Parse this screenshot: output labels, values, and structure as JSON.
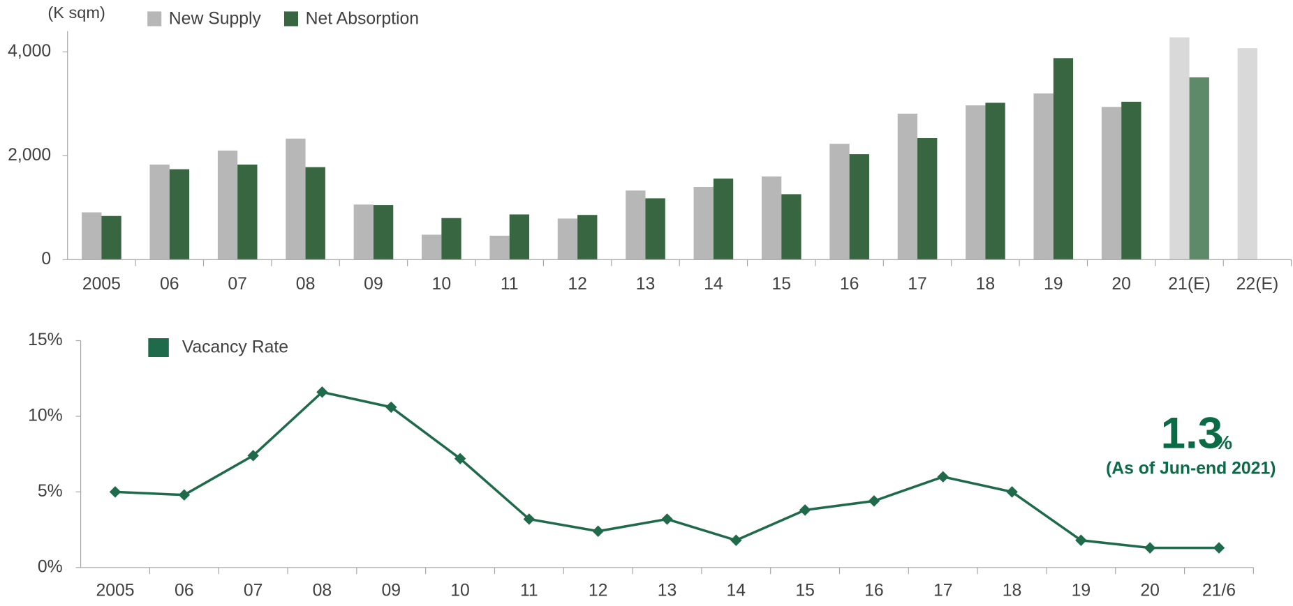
{
  "chart_data": [
    {
      "type": "bar",
      "unit_label": "(K sqm)",
      "categories": [
        "2005",
        "06",
        "07",
        "08",
        "09",
        "10",
        "11",
        "12",
        "13",
        "14",
        "15",
        "16",
        "17",
        "18",
        "19",
        "20",
        "21(E)",
        "22(E)"
      ],
      "series": [
        {
          "name": "New Supply",
          "color": "#b7b7b7",
          "colors": [
            "#b7b7b7",
            "#b7b7b7",
            "#b7b7b7",
            "#b7b7b7",
            "#b7b7b7",
            "#b7b7b7",
            "#b7b7b7",
            "#b7b7b7",
            "#b7b7b7",
            "#b7b7b7",
            "#b7b7b7",
            "#b7b7b7",
            "#b7b7b7",
            "#b7b7b7",
            "#b7b7b7",
            "#b7b7b7",
            "#d9d9d9",
            "#d9d9d9"
          ],
          "values": [
            910,
            1830,
            2100,
            2330,
            1060,
            480,
            460,
            790,
            1330,
            1400,
            1600,
            2230,
            2810,
            2970,
            3200,
            2940,
            4280,
            4070
          ]
        },
        {
          "name": "Net Absorption",
          "color": "#386641",
          "colors": [
            "#386641",
            "#386641",
            "#386641",
            "#386641",
            "#386641",
            "#386641",
            "#386641",
            "#386641",
            "#386641",
            "#386641",
            "#386641",
            "#386641",
            "#386641",
            "#386641",
            "#386641",
            "#386641",
            "#5e8a6a",
            "#5e8a6a"
          ],
          "values": [
            840,
            1740,
            1830,
            1780,
            1050,
            800,
            870,
            860,
            1180,
            1560,
            1260,
            2030,
            2340,
            3020,
            3880,
            3040,
            3510,
            null
          ]
        }
      ],
      "ylim": [
        0,
        4400
      ],
      "yticks": [
        0,
        {
          "value": 2000,
          "label": "2,000"
        },
        {
          "value": 4000,
          "label": "4,000"
        }
      ],
      "grid": false,
      "legend": "top-left"
    },
    {
      "type": "line",
      "categories": [
        "2005",
        "06",
        "07",
        "08",
        "09",
        "10",
        "11",
        "12",
        "13",
        "14",
        "15",
        "16",
        "17",
        "18",
        "19",
        "20",
        "21/6"
      ],
      "series": [
        {
          "name": "Vacancy Rate",
          "color": "#1e6a4a",
          "values": [
            5.0,
            4.8,
            7.4,
            11.6,
            10.6,
            7.2,
            3.2,
            2.4,
            3.2,
            1.8,
            3.8,
            4.4,
            6.0,
            5.0,
            1.8,
            1.3,
            1.3
          ]
        }
      ],
      "ylim": [
        0,
        15
      ],
      "yticks": [
        {
          "value": 0,
          "label": "0%"
        },
        {
          "value": 5,
          "label": "5%"
        },
        {
          "value": 10,
          "label": "10%"
        },
        {
          "value": 15,
          "label": "15%"
        }
      ],
      "grid": false,
      "legend": "top-left",
      "annotation": {
        "value_text": "1.3",
        "unit": "%",
        "note": "(As of Jun-end 2021)",
        "color": "#0b6b47"
      }
    }
  ]
}
